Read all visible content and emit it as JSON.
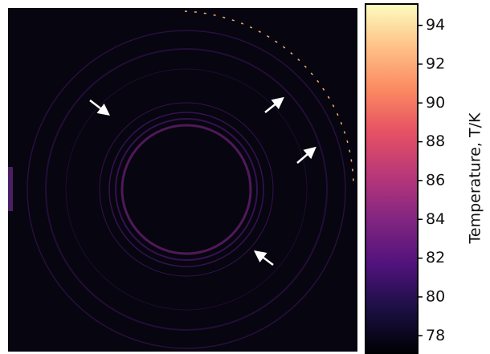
{
  "chart_data": {
    "type": "heatmap",
    "colormap": "magma",
    "colorbar": {
      "label": "Temperature, T/K",
      "clim": [
        77.1,
        95.1
      ],
      "ticks": [
        78,
        80,
        82,
        84,
        86,
        88,
        90,
        92,
        94
      ]
    }
  }
}
